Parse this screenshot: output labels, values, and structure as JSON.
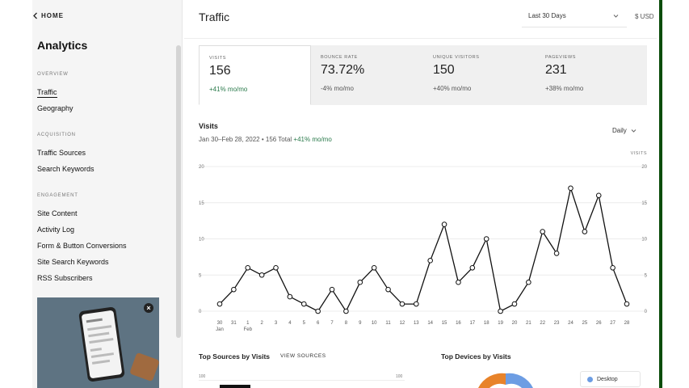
{
  "sidebar": {
    "home_label": "HOME",
    "app_title": "Analytics",
    "sections": [
      {
        "label": "OVERVIEW",
        "items": [
          {
            "label": "Traffic",
            "active": true
          },
          {
            "label": "Geography"
          }
        ]
      },
      {
        "label": "ACQUISITION",
        "items": [
          {
            "label": "Traffic Sources"
          },
          {
            "label": "Search Keywords"
          }
        ]
      },
      {
        "label": "ENGAGEMENT",
        "items": [
          {
            "label": "Site Content"
          },
          {
            "label": "Activity Log"
          },
          {
            "label": "Form & Button Conversions"
          },
          {
            "label": "Site Search Keywords"
          },
          {
            "label": "RSS Subscribers"
          }
        ]
      }
    ],
    "promo_close_icon": "close-icon"
  },
  "header": {
    "title": "Traffic",
    "date_range": "Last 30 Days",
    "currency": "$ USD"
  },
  "stats": [
    {
      "label": "VISITS",
      "value": "156",
      "change": "+41% mo/mo",
      "positive": true,
      "selected": true
    },
    {
      "label": "BOUNCE RATE",
      "value": "73.72%",
      "change": "-4% mo/mo",
      "positive": false
    },
    {
      "label": "UNIQUE VISITORS",
      "value": "150",
      "change": "+40% mo/mo",
      "positive": false
    },
    {
      "label": "PAGEVIEWS",
      "value": "231",
      "change": "+38% mo/mo",
      "positive": false
    }
  ],
  "visits": {
    "title": "Visits",
    "subtitle_prefix": "Jan 30–Feb 28, 2022 • 156 Total",
    "subtitle_change": "+41% mo/mo",
    "granularity": "Daily"
  },
  "chart_data": {
    "type": "line",
    "ylabel": "VISITS",
    "ylim": [
      0,
      20
    ],
    "yticks": [
      0,
      5,
      10,
      15,
      20
    ],
    "grid": true,
    "x_tick_labels": [
      "30",
      "31",
      "1",
      "2",
      "3",
      "4",
      "5",
      "6",
      "7",
      "8",
      "9",
      "10",
      "11",
      "12",
      "13",
      "14",
      "15",
      "16",
      "17",
      "18",
      "19",
      "20",
      "21",
      "22",
      "23",
      "24",
      "25",
      "26",
      "27",
      "28"
    ],
    "x_month_labels": [
      {
        "at": 0,
        "label": "Jan"
      },
      {
        "at": 2,
        "label": "Feb"
      }
    ],
    "series": [
      {
        "values": [
          1,
          3,
          6,
          5,
          6,
          2,
          1,
          0,
          3,
          0,
          4,
          6,
          3,
          1,
          1,
          7,
          12,
          4,
          6,
          10,
          0,
          1,
          4,
          11,
          8,
          17,
          11,
          16,
          6,
          1
        ]
      }
    ]
  },
  "sources": {
    "title": "Top Sources by Visits",
    "link": "VIEW SOURCES",
    "tick_left": "100",
    "tick_right": "100"
  },
  "devices": {
    "title": "Top Devices by Visits",
    "legend": [
      {
        "label": "Desktop",
        "color": "#6d9de3"
      }
    ],
    "colors": {
      "desktop": "#6d9de3",
      "mobile": "#e8832a"
    }
  },
  "colors": {
    "positive": "#2a7a4b",
    "accent_bar": "#0b4d0b"
  }
}
